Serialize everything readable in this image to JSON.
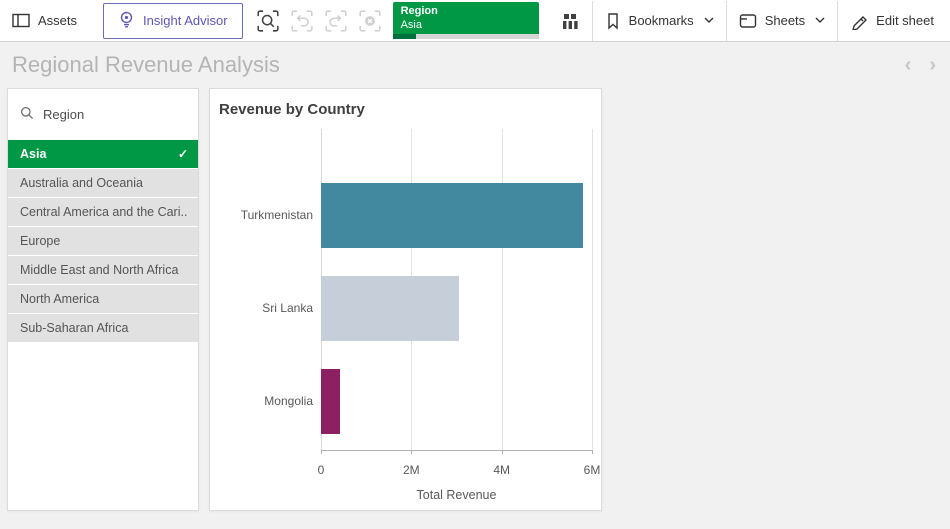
{
  "toolbar": {
    "assets_label": "Assets",
    "insight_advisor_label": "Insight Advisor",
    "selection_chip": {
      "field": "Region",
      "value": "Asia"
    },
    "bookmarks_label": "Bookmarks",
    "sheets_label": "Sheets",
    "edit_sheet_label": "Edit sheet"
  },
  "sheet_header": {
    "title": "Regional Revenue Analysis"
  },
  "filterpane": {
    "title": "Region",
    "items": [
      {
        "label": "Asia",
        "selected": true
      },
      {
        "label": "Australia and Oceania",
        "selected": false
      },
      {
        "label": "Central America and the Cari...",
        "selected": false
      },
      {
        "label": "Europe",
        "selected": false
      },
      {
        "label": "Middle East and North Africa",
        "selected": false
      },
      {
        "label": "North America",
        "selected": false
      },
      {
        "label": "Sub-Saharan Africa",
        "selected": false
      }
    ]
  },
  "chart_data": {
    "type": "bar",
    "orientation": "horizontal",
    "title": "Revenue by Country",
    "categories": [
      "Turkmenistan",
      "Sri Lanka",
      "Mongolia"
    ],
    "values": [
      5800000,
      3050000,
      420000
    ],
    "bar_colors": [
      "#42889f",
      "#c6cfd9",
      "#8d2063"
    ],
    "xlabel": "Total Revenue",
    "x_ticks": [
      "0",
      "2M",
      "4M",
      "6M"
    ],
    "xlim": [
      0,
      6000000
    ],
    "grid": true,
    "legend": false
  },
  "icons": {
    "checkmark": "✓"
  },
  "colors": {
    "selected_green": "#009845",
    "selection_bar_green": "#00703c",
    "insight_purple": "#5b58b5",
    "bar_teal": "#42889f",
    "bar_gray_blue": "#c6cfd9",
    "bar_magenta": "#8d2063"
  }
}
